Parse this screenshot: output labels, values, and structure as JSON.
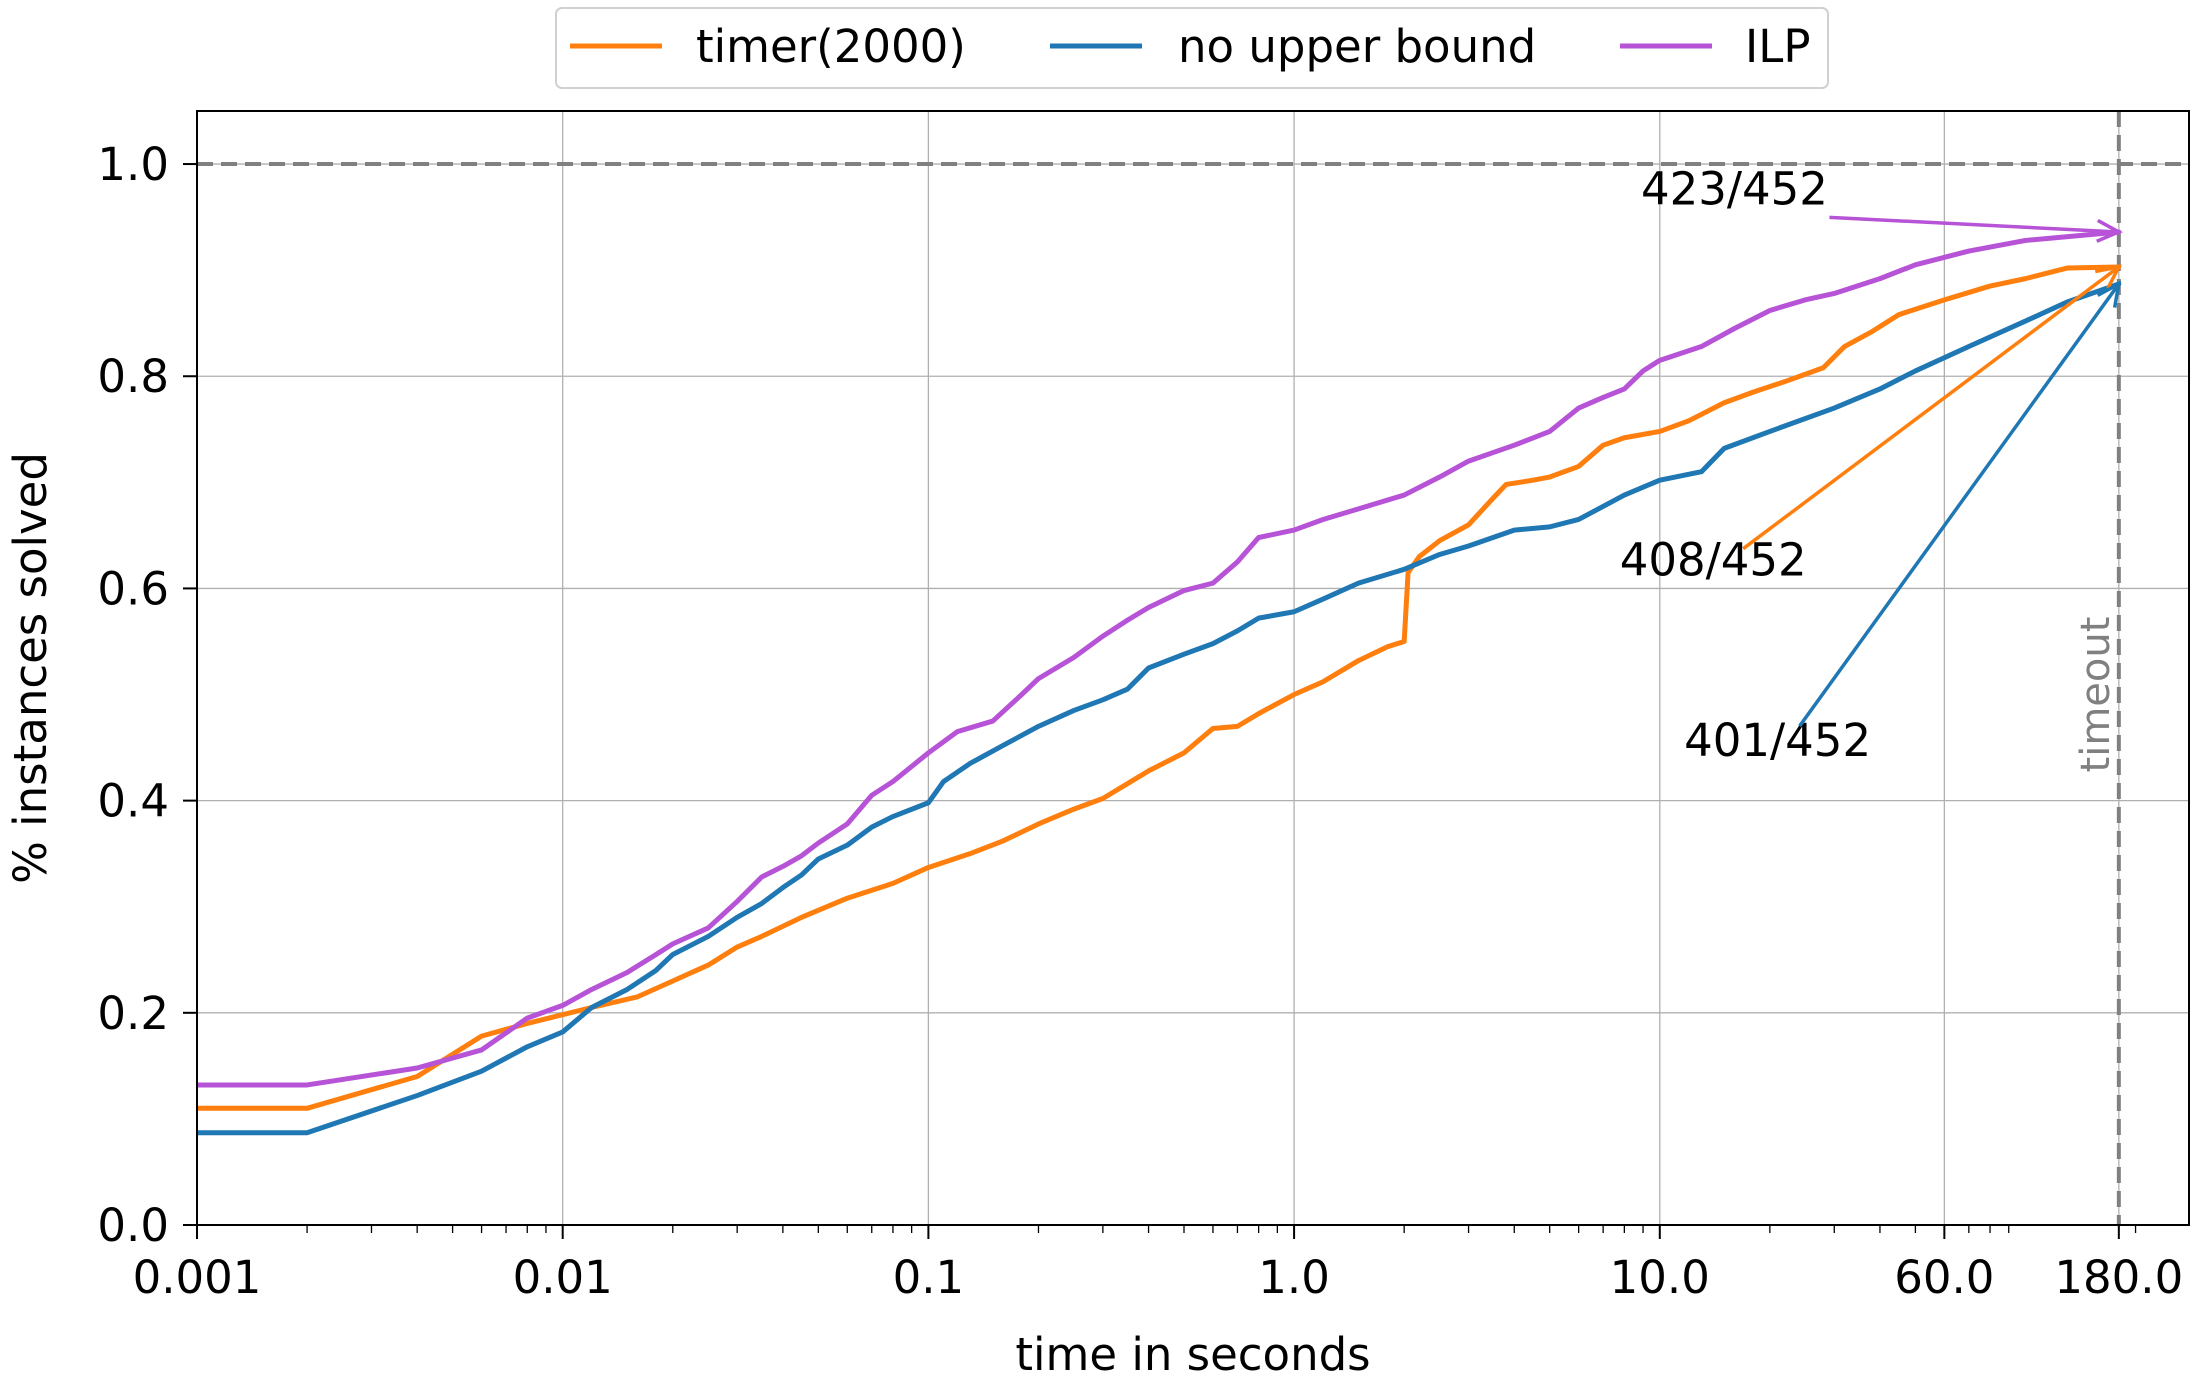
{
  "chart_data": {
    "type": "line",
    "xlabel": "time in seconds",
    "ylabel": "% instances solved",
    "x_scale": "log",
    "xlim": [
      0.001,
      280
    ],
    "ylim": [
      0.0,
      1.05
    ],
    "x_ticks": [
      0.001,
      0.01,
      0.1,
      1.0,
      10.0,
      60.0,
      180.0
    ],
    "x_tick_labels": [
      "0.001",
      "0.01",
      "0.1",
      "1.0",
      "10.0",
      "60.0",
      "180.0"
    ],
    "y_ticks": [
      0.0,
      0.2,
      0.4,
      0.6,
      0.8,
      1.0
    ],
    "y_tick_labels": [
      "0.0",
      "0.2",
      "0.4",
      "0.6",
      "0.8",
      "1.0"
    ],
    "grid": true,
    "legend_position": "top-center",
    "reference_lines": [
      {
        "orientation": "horizontal",
        "value": 1.0,
        "style": "dashed",
        "color": "#808080"
      },
      {
        "orientation": "vertical",
        "value": 180.0,
        "style": "dashed",
        "color": "#808080",
        "label": "timeout"
      }
    ],
    "series": [
      {
        "name": "timer(2000)",
        "color": "#ff7f0e",
        "points": [
          [
            0.001,
            0.11
          ],
          [
            0.002,
            0.11
          ],
          [
            0.004,
            0.14
          ],
          [
            0.006,
            0.178
          ],
          [
            0.008,
            0.19
          ],
          [
            0.012,
            0.205
          ],
          [
            0.016,
            0.215
          ],
          [
            0.02,
            0.23
          ],
          [
            0.025,
            0.245
          ],
          [
            0.03,
            0.262
          ],
          [
            0.035,
            0.272
          ],
          [
            0.045,
            0.29
          ],
          [
            0.06,
            0.308
          ],
          [
            0.08,
            0.322
          ],
          [
            0.1,
            0.337
          ],
          [
            0.13,
            0.35
          ],
          [
            0.16,
            0.362
          ],
          [
            0.2,
            0.378
          ],
          [
            0.25,
            0.392
          ],
          [
            0.3,
            0.402
          ],
          [
            0.4,
            0.428
          ],
          [
            0.5,
            0.445
          ],
          [
            0.6,
            0.468
          ],
          [
            0.7,
            0.47
          ],
          [
            0.8,
            0.482
          ],
          [
            1.0,
            0.5
          ],
          [
            1.2,
            0.512
          ],
          [
            1.5,
            0.532
          ],
          [
            1.8,
            0.545
          ],
          [
            2.0,
            0.55
          ],
          [
            2.05,
            0.615
          ],
          [
            2.2,
            0.63
          ],
          [
            2.5,
            0.645
          ],
          [
            3.0,
            0.66
          ],
          [
            3.5,
            0.685
          ],
          [
            3.8,
            0.698
          ],
          [
            4.5,
            0.702
          ],
          [
            5.0,
            0.705
          ],
          [
            6.0,
            0.715
          ],
          [
            7.0,
            0.735
          ],
          [
            8.0,
            0.742
          ],
          [
            10.0,
            0.748
          ],
          [
            12.0,
            0.758
          ],
          [
            15.0,
            0.775
          ],
          [
            18.0,
            0.785
          ],
          [
            22.0,
            0.795
          ],
          [
            28.0,
            0.808
          ],
          [
            32.0,
            0.828
          ],
          [
            38.0,
            0.842
          ],
          [
            45.0,
            0.858
          ],
          [
            60.0,
            0.872
          ],
          [
            80.0,
            0.885
          ],
          [
            100.0,
            0.892
          ],
          [
            130.0,
            0.902
          ],
          [
            180.0,
            0.903
          ]
        ]
      },
      {
        "name": "no upper bound",
        "color": "#1f77b4",
        "points": [
          [
            0.001,
            0.087
          ],
          [
            0.002,
            0.087
          ],
          [
            0.004,
            0.122
          ],
          [
            0.006,
            0.145
          ],
          [
            0.008,
            0.168
          ],
          [
            0.01,
            0.182
          ],
          [
            0.012,
            0.205
          ],
          [
            0.015,
            0.222
          ],
          [
            0.018,
            0.24
          ],
          [
            0.02,
            0.255
          ],
          [
            0.025,
            0.272
          ],
          [
            0.03,
            0.29
          ],
          [
            0.035,
            0.303
          ],
          [
            0.04,
            0.318
          ],
          [
            0.045,
            0.33
          ],
          [
            0.05,
            0.345
          ],
          [
            0.06,
            0.358
          ],
          [
            0.07,
            0.375
          ],
          [
            0.08,
            0.385
          ],
          [
            0.1,
            0.398
          ],
          [
            0.11,
            0.418
          ],
          [
            0.13,
            0.435
          ],
          [
            0.16,
            0.452
          ],
          [
            0.2,
            0.47
          ],
          [
            0.25,
            0.485
          ],
          [
            0.3,
            0.495
          ],
          [
            0.35,
            0.505
          ],
          [
            0.4,
            0.525
          ],
          [
            0.5,
            0.538
          ],
          [
            0.6,
            0.548
          ],
          [
            0.7,
            0.56
          ],
          [
            0.8,
            0.572
          ],
          [
            1.0,
            0.578
          ],
          [
            1.2,
            0.59
          ],
          [
            1.5,
            0.605
          ],
          [
            2.0,
            0.618
          ],
          [
            2.5,
            0.632
          ],
          [
            3.0,
            0.64
          ],
          [
            4.0,
            0.655
          ],
          [
            5.0,
            0.658
          ],
          [
            6.0,
            0.665
          ],
          [
            8.0,
            0.688
          ],
          [
            10.0,
            0.702
          ],
          [
            13.0,
            0.71
          ],
          [
            15.0,
            0.732
          ],
          [
            20.0,
            0.748
          ],
          [
            30.0,
            0.77
          ],
          [
            40.0,
            0.788
          ],
          [
            50.0,
            0.805
          ],
          [
            70.0,
            0.828
          ],
          [
            100.0,
            0.852
          ],
          [
            130.0,
            0.87
          ],
          [
            180.0,
            0.887
          ]
        ]
      },
      {
        "name": "ILP",
        "color": "#b653d6",
        "points": [
          [
            0.001,
            0.132
          ],
          [
            0.002,
            0.132
          ],
          [
            0.004,
            0.148
          ],
          [
            0.006,
            0.165
          ],
          [
            0.008,
            0.195
          ],
          [
            0.01,
            0.207
          ],
          [
            0.012,
            0.222
          ],
          [
            0.015,
            0.238
          ],
          [
            0.018,
            0.255
          ],
          [
            0.02,
            0.265
          ],
          [
            0.025,
            0.28
          ],
          [
            0.03,
            0.305
          ],
          [
            0.035,
            0.328
          ],
          [
            0.04,
            0.338
          ],
          [
            0.045,
            0.348
          ],
          [
            0.05,
            0.36
          ],
          [
            0.06,
            0.378
          ],
          [
            0.07,
            0.405
          ],
          [
            0.08,
            0.418
          ],
          [
            0.1,
            0.445
          ],
          [
            0.12,
            0.465
          ],
          [
            0.15,
            0.475
          ],
          [
            0.18,
            0.5
          ],
          [
            0.2,
            0.515
          ],
          [
            0.25,
            0.535
          ],
          [
            0.3,
            0.555
          ],
          [
            0.35,
            0.57
          ],
          [
            0.4,
            0.582
          ],
          [
            0.5,
            0.598
          ],
          [
            0.6,
            0.605
          ],
          [
            0.7,
            0.625
          ],
          [
            0.8,
            0.648
          ],
          [
            1.0,
            0.655
          ],
          [
            1.2,
            0.665
          ],
          [
            1.5,
            0.675
          ],
          [
            2.0,
            0.688
          ],
          [
            2.5,
            0.705
          ],
          [
            3.0,
            0.72
          ],
          [
            4.0,
            0.735
          ],
          [
            5.0,
            0.748
          ],
          [
            6.0,
            0.77
          ],
          [
            7.0,
            0.78
          ],
          [
            8.0,
            0.788
          ],
          [
            9.0,
            0.805
          ],
          [
            10.0,
            0.815
          ],
          [
            13.0,
            0.828
          ],
          [
            16.0,
            0.845
          ],
          [
            20.0,
            0.862
          ],
          [
            25.0,
            0.872
          ],
          [
            30.0,
            0.878
          ],
          [
            40.0,
            0.892
          ],
          [
            50.0,
            0.905
          ],
          [
            70.0,
            0.918
          ],
          [
            100.0,
            0.928
          ],
          [
            180.0,
            0.936
          ]
        ]
      }
    ],
    "annotations": [
      {
        "text": "423/452",
        "color": "#b653d6",
        "series": "ILP",
        "x": 16.0,
        "y": 0.962
      },
      {
        "text": "408/452",
        "color": "#ff7f0e",
        "series": "timer(2000)",
        "x": 14.0,
        "y": 0.612
      },
      {
        "text": "401/452",
        "color": "#1f77b4",
        "series": "no upper bound",
        "x": 21.0,
        "y": 0.442
      }
    ]
  }
}
